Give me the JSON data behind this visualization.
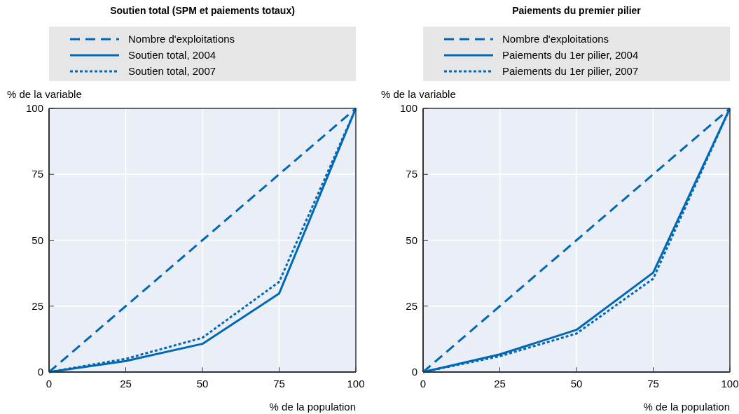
{
  "chart_data": [
    {
      "type": "line",
      "title": "Soutien total (SPM et paiements totaux)",
      "xlabel": "% de la population",
      "ylabel": "% de la variable",
      "x": [
        0,
        25,
        50,
        75,
        100
      ],
      "xlim": [
        0,
        100
      ],
      "ylim": [
        0,
        100
      ],
      "xticks": [
        0,
        25,
        50,
        75,
        100
      ],
      "yticks": [
        0,
        25,
        50,
        75,
        100
      ],
      "grid": true,
      "legend": "top",
      "series": [
        {
          "name": "Nombre d'exploitations",
          "color": "#0068b4",
          "line_style": "dashed",
          "values": [
            0,
            25,
            50,
            75,
            100
          ]
        },
        {
          "name": "Soutien total, 2004",
          "color": "#0068b4",
          "line_style": "solid",
          "values": [
            0,
            4.2,
            10.7,
            29.8,
            100
          ]
        },
        {
          "name": "Soutien total, 2007",
          "color": "#0068b4",
          "line_style": "dotted",
          "values": [
            0,
            5.0,
            13.0,
            34.2,
            100
          ]
        }
      ]
    },
    {
      "type": "line",
      "title": "Paiements du premier pilier",
      "xlabel": "% de la population",
      "ylabel": "% de la variable",
      "x": [
        0,
        25,
        50,
        75,
        100
      ],
      "xlim": [
        0,
        100
      ],
      "ylim": [
        0,
        100
      ],
      "xticks": [
        0,
        25,
        50,
        75,
        100
      ],
      "yticks": [
        0,
        25,
        50,
        75,
        100
      ],
      "grid": true,
      "legend": "top",
      "series": [
        {
          "name": "Nombre d'exploitations",
          "color": "#0068b4",
          "line_style": "dashed",
          "values": [
            0,
            25,
            50,
            75,
            100
          ]
        },
        {
          "name": "Paiements du 1er pilier, 2004",
          "color": "#0068b4",
          "line_style": "solid",
          "values": [
            0,
            6.7,
            16.0,
            37.7,
            100
          ]
        },
        {
          "name": "Paiements du 1er pilier, 2007",
          "color": "#0068b4",
          "line_style": "dotted",
          "values": [
            0,
            6.0,
            14.6,
            35.4,
            100
          ]
        }
      ]
    }
  ]
}
